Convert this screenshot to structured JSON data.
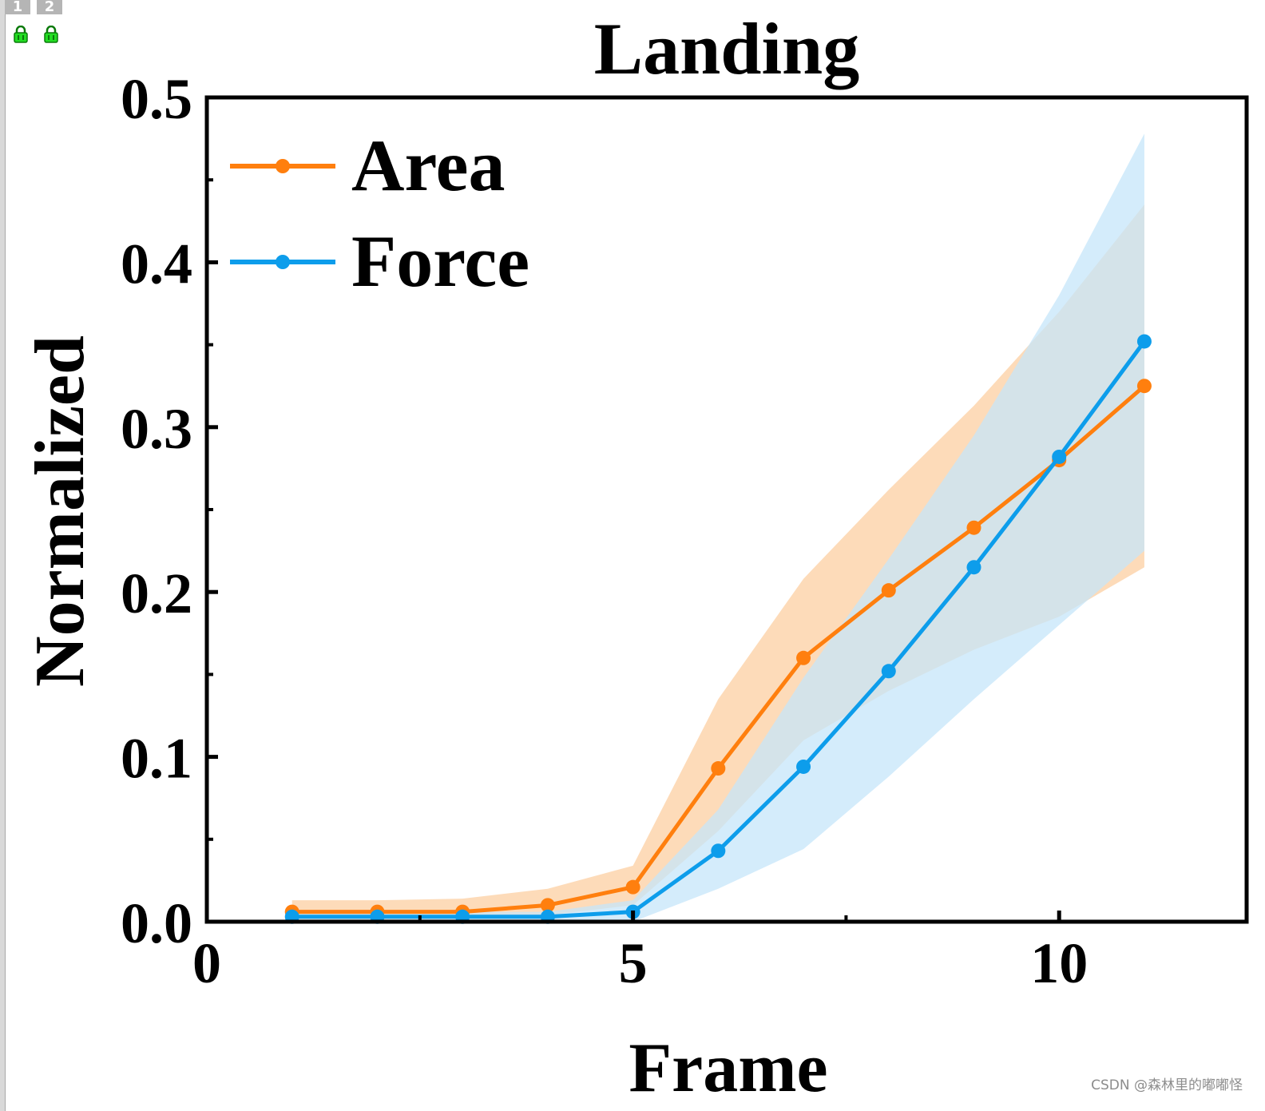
{
  "window": {
    "tabs": [
      "1",
      "2"
    ],
    "watermark": "CSDN @森林里的嘟嘟怪"
  },
  "chart_data": {
    "type": "line",
    "title": "Landing",
    "xlabel": "Frame",
    "ylabel": "Normalized",
    "xlim": [
      0,
      12.2
    ],
    "ylim": [
      0,
      0.5
    ],
    "xticks": [
      0,
      5,
      10
    ],
    "xtick_labels": [
      "0",
      "5",
      "10"
    ],
    "yticks": [
      0.0,
      0.1,
      0.2,
      0.3,
      0.4,
      0.5
    ],
    "ytick_labels": [
      "0.0",
      "0.1",
      "0.2",
      "0.3",
      "0.4",
      "0.5"
    ],
    "grid": false,
    "legend_position": "top-left",
    "x": [
      1,
      2,
      3,
      4,
      5,
      6,
      7,
      8,
      9,
      10,
      11
    ],
    "series": [
      {
        "name": "Area",
        "color": "#FF7F0E",
        "band_color": "#FDD5AD",
        "values": [
          0.006,
          0.006,
          0.006,
          0.01,
          0.021,
          0.093,
          0.16,
          0.201,
          0.239,
          0.28,
          0.325
        ],
        "lower": [
          0.001,
          0.001,
          0.002,
          0.004,
          0.01,
          0.055,
          0.11,
          0.14,
          0.165,
          0.185,
          0.215
        ],
        "upper": [
          0.013,
          0.013,
          0.014,
          0.02,
          0.034,
          0.135,
          0.208,
          0.262,
          0.313,
          0.37,
          0.435
        ]
      },
      {
        "name": "Force",
        "color": "#0D9DEB",
        "band_color": "#C6E6F9",
        "values": [
          0.003,
          0.003,
          0.003,
          0.003,
          0.006,
          0.043,
          0.094,
          0.152,
          0.215,
          0.282,
          0.352
        ],
        "lower": [
          0.0,
          0.0,
          0.0,
          0.0,
          0.0,
          0.02,
          0.044,
          0.088,
          0.135,
          0.18,
          0.225
        ],
        "upper": [
          0.006,
          0.006,
          0.006,
          0.006,
          0.013,
          0.068,
          0.148,
          0.22,
          0.295,
          0.38,
          0.478
        ]
      }
    ]
  }
}
